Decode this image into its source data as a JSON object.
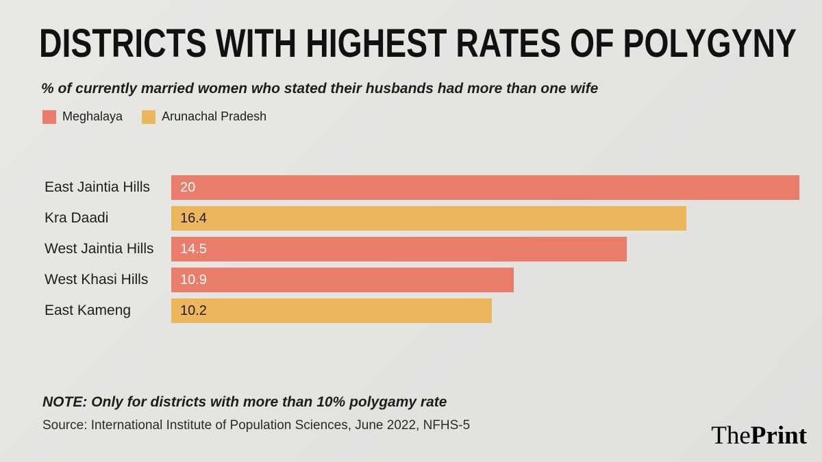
{
  "header": {
    "title": "DISTRICTS WITH HIGHEST RATES OF POLYGYNY",
    "subtitle": "% of currently married women who stated their husbands had more than one wife"
  },
  "legend": [
    {
      "label": "Meghalaya",
      "color": "#e97c6a",
      "value_text_color": "#ffffff"
    },
    {
      "label": "Arunachal Pradesh",
      "color": "#ecb65c",
      "value_text_color": "#1d1d1b"
    }
  ],
  "chart_data": {
    "type": "bar",
    "orientation": "horizontal",
    "title": "DISTRICTS WITH HIGHEST RATES OF POLYGYNY",
    "subtitle": "% of currently married women who stated their husbands had more than one wife",
    "categories": [
      "East Jaintia Hills",
      "Kra Daadi",
      "West Jaintia Hills",
      "West Khasi Hills",
      "East Kameng"
    ],
    "values": [
      20,
      16.4,
      14.5,
      10.9,
      10.2
    ],
    "value_labels": [
      "20",
      "16.4",
      "14.5",
      "10.9",
      "10.2"
    ],
    "series_by_bar": [
      "Meghalaya",
      "Arunachal Pradesh",
      "Meghalaya",
      "Meghalaya",
      "Arunachal Pradesh"
    ],
    "xlim": [
      0,
      20
    ],
    "grid": false,
    "legend_position": "top",
    "legend_entries": [
      "Meghalaya",
      "Arunachal Pradesh"
    ]
  },
  "footer": {
    "note": "NOTE: Only for districts with more than 10% polygamy rate",
    "source": "Source: International Institute of Population Sciences, June 2022, NFHS-5"
  },
  "branding": {
    "the": "The",
    "print": "Print"
  }
}
